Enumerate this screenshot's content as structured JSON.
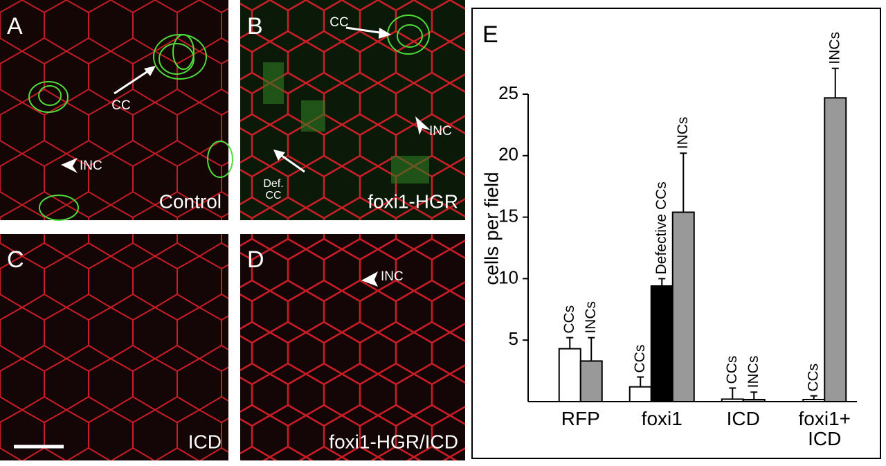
{
  "panels": [
    {
      "label": "A",
      "caption": "Control",
      "annotations": [
        "CC",
        "INC"
      ]
    },
    {
      "label": "B",
      "caption": "foxi1-HGR",
      "annotations": [
        "CC",
        "INC",
        "Def.\nCC"
      ]
    },
    {
      "label": "C",
      "caption": "ICD",
      "annotations": []
    },
    {
      "label": "D",
      "caption": "foxi1-HGR/ICD",
      "annotations": [
        "INC"
      ]
    }
  ],
  "chart_data": {
    "type": "bar",
    "label": "E",
    "ylabel": "cells per field",
    "categories": [
      "RFP",
      "foxi1",
      "ICD",
      "foxi1+\nICD"
    ],
    "series": [
      {
        "name": "CCs",
        "color": "#ffffff",
        "values": [
          4.3,
          1.2,
          0.2,
          0.17
        ],
        "errors": [
          0.9,
          0.8,
          0.9,
          0.3
        ]
      },
      {
        "name": "Defective CCs",
        "color": "#000000",
        "values": [
          null,
          9.4,
          null,
          null
        ],
        "errors": [
          null,
          0.6,
          null,
          null
        ]
      },
      {
        "name": "INCs",
        "color": "#999999",
        "values": [
          3.3,
          15.4,
          0.17,
          24.7
        ],
        "errors": [
          1.9,
          4.8,
          0.6,
          2.4
        ]
      }
    ],
    "ylim": [
      0,
      25
    ],
    "yticks": [
      5,
      10,
      15,
      20,
      25
    ]
  }
}
